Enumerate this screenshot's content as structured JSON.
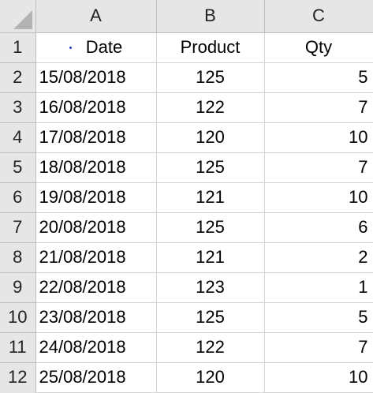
{
  "columns": [
    "A",
    "B",
    "C"
  ],
  "headers": [
    "Date",
    "Product",
    "Qty"
  ],
  "row_numbers": [
    "1",
    "2",
    "3",
    "4",
    "5",
    "6",
    "7",
    "8",
    "9",
    "10",
    "11",
    "12"
  ],
  "rows": [
    {
      "date": "15/08/2018",
      "product": "125",
      "qty": "5"
    },
    {
      "date": "16/08/2018",
      "product": "122",
      "qty": "7"
    },
    {
      "date": "17/08/2018",
      "product": "120",
      "qty": "10"
    },
    {
      "date": "18/08/2018",
      "product": "125",
      "qty": "7"
    },
    {
      "date": "19/08/2018",
      "product": "121",
      "qty": "10"
    },
    {
      "date": "20/08/2018",
      "product": "125",
      "qty": "6"
    },
    {
      "date": "21/08/2018",
      "product": "121",
      "qty": "2"
    },
    {
      "date": "22/08/2018",
      "product": "123",
      "qty": "1"
    },
    {
      "date": "23/08/2018",
      "product": "125",
      "qty": "5"
    },
    {
      "date": "24/08/2018",
      "product": "122",
      "qty": "7"
    },
    {
      "date": "25/08/2018",
      "product": "120",
      "qty": "10"
    }
  ],
  "colors": {
    "header_bg": "#e6e6e6",
    "gridline": "#d4d4d4",
    "corner_triangle": "#b3b3b3",
    "indicator_dot": "#1f3fbf"
  },
  "icons": {
    "corner": "select-all-triangle-icon",
    "date_header_marker": "dot-icon"
  }
}
